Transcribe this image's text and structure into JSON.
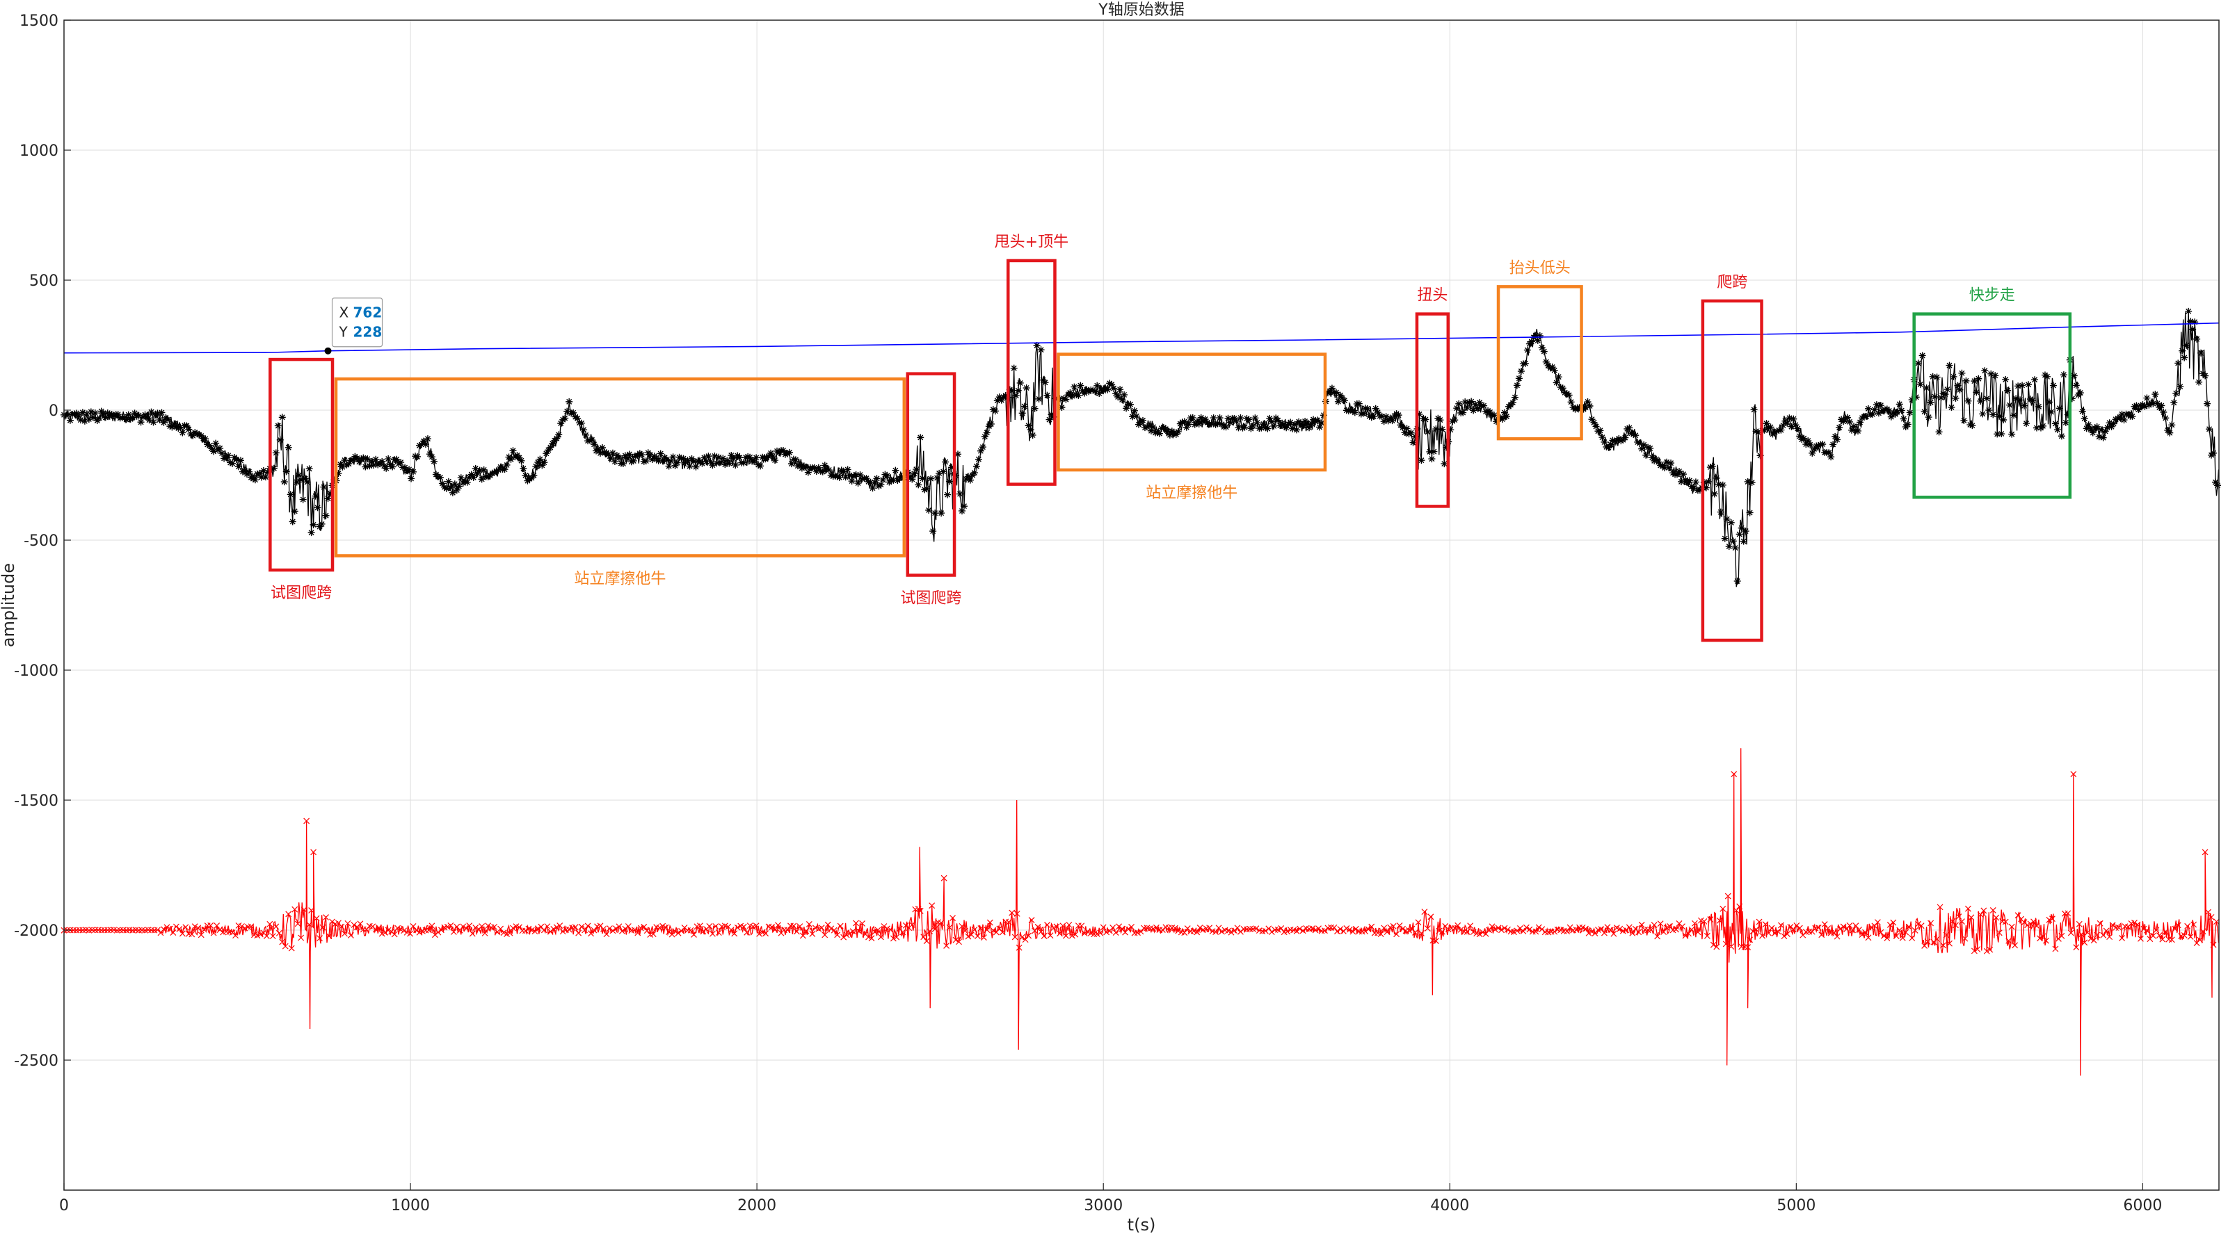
{
  "chart_data": {
    "type": "line",
    "title": "Y轴原始数据",
    "xlabel": "t(s)",
    "ylabel": "amplitude",
    "xlim": [
      0,
      6220
    ],
    "ylim": [
      -3000,
      1500
    ],
    "xticks": [
      0,
      1000,
      2000,
      3000,
      4000,
      5000,
      6000
    ],
    "yticks": [
      1500,
      1000,
      500,
      0,
      -500,
      -1000,
      -1500,
      -2000,
      -2500
    ],
    "grid": true,
    "series": [
      {
        "key": "raw",
        "color": "#000000",
        "marker": "*",
        "points": [
          [
            0,
            -25
          ],
          [
            100,
            -25
          ],
          [
            200,
            -25
          ],
          [
            270,
            -25
          ],
          [
            300,
            -40
          ],
          [
            350,
            -70
          ],
          [
            400,
            -110
          ],
          [
            450,
            -160
          ],
          [
            500,
            -200
          ],
          [
            550,
            -260
          ],
          [
            600,
            -230
          ],
          [
            630,
            -120
          ],
          [
            660,
            -350
          ],
          [
            700,
            -280
          ],
          [
            720,
            -390
          ],
          [
            760,
            -360
          ],
          [
            800,
            -200
          ],
          [
            850,
            -190
          ],
          [
            900,
            -210
          ],
          [
            950,
            -200
          ],
          [
            1000,
            -250
          ],
          [
            1030,
            -140
          ],
          [
            1050,
            -120
          ],
          [
            1080,
            -260
          ],
          [
            1120,
            -300
          ],
          [
            1180,
            -240
          ],
          [
            1220,
            -250
          ],
          [
            1260,
            -230
          ],
          [
            1300,
            -170
          ],
          [
            1340,
            -260
          ],
          [
            1380,
            -200
          ],
          [
            1420,
            -120
          ],
          [
            1460,
            20
          ],
          [
            1500,
            -80
          ],
          [
            1550,
            -160
          ],
          [
            1600,
            -190
          ],
          [
            1700,
            -180
          ],
          [
            1800,
            -210
          ],
          [
            1900,
            -190
          ],
          [
            2000,
            -200
          ],
          [
            2080,
            -170
          ],
          [
            2150,
            -220
          ],
          [
            2250,
            -240
          ],
          [
            2330,
            -280
          ],
          [
            2400,
            -250
          ],
          [
            2440,
            -260
          ],
          [
            2480,
            -210
          ],
          [
            2510,
            -400
          ],
          [
            2550,
            -260
          ],
          [
            2600,
            -280
          ],
          [
            2640,
            -200
          ],
          [
            2660,
            -80
          ],
          [
            2680,
            -20
          ],
          [
            2700,
            30
          ],
          [
            2740,
            60
          ],
          [
            2760,
            10
          ],
          [
            2790,
            -50
          ],
          [
            2810,
            160
          ],
          [
            2840,
            60
          ],
          [
            2880,
            30
          ],
          [
            2920,
            80
          ],
          [
            2960,
            70
          ],
          [
            3000,
            80
          ],
          [
            3020,
            90
          ],
          [
            3050,
            60
          ],
          [
            3070,
            20
          ],
          [
            3100,
            -40
          ],
          [
            3160,
            -70
          ],
          [
            3200,
            -90
          ],
          [
            3260,
            -40
          ],
          [
            3300,
            -50
          ],
          [
            3400,
            -50
          ],
          [
            3500,
            -50
          ],
          [
            3580,
            -60
          ],
          [
            3630,
            -50
          ],
          [
            3650,
            80
          ],
          [
            3700,
            20
          ],
          [
            3760,
            0
          ],
          [
            3800,
            -20
          ],
          [
            3850,
            -30
          ],
          [
            3880,
            -90
          ],
          [
            3900,
            -120
          ],
          [
            3930,
            -150
          ],
          [
            3960,
            -60
          ],
          [
            3990,
            -120
          ],
          [
            4020,
            0
          ],
          [
            4060,
            20
          ],
          [
            4100,
            0
          ],
          [
            4140,
            -50
          ],
          [
            4180,
            20
          ],
          [
            4220,
            200
          ],
          [
            4250,
            300
          ],
          [
            4280,
            200
          ],
          [
            4320,
            90
          ],
          [
            4360,
            0
          ],
          [
            4400,
            20
          ],
          [
            4430,
            -80
          ],
          [
            4460,
            -150
          ],
          [
            4500,
            -100
          ],
          [
            4530,
            -80
          ],
          [
            4560,
            -150
          ],
          [
            4600,
            -190
          ],
          [
            4650,
            -230
          ],
          [
            4700,
            -300
          ],
          [
            4750,
            -280
          ],
          [
            4780,
            -330
          ],
          [
            4800,
            -450
          ],
          [
            4830,
            -600
          ],
          [
            4860,
            -380
          ],
          [
            4880,
            -80
          ],
          [
            4910,
            -60
          ],
          [
            4940,
            -100
          ],
          [
            4970,
            -30
          ],
          [
            5000,
            -60
          ],
          [
            5030,
            -120
          ],
          [
            5050,
            -160
          ],
          [
            5080,
            -150
          ],
          [
            5100,
            -170
          ],
          [
            5120,
            -90
          ],
          [
            5140,
            -20
          ],
          [
            5170,
            -80
          ],
          [
            5200,
            -20
          ],
          [
            5240,
            10
          ],
          [
            5280,
            -10
          ],
          [
            5300,
            10
          ],
          [
            5320,
            -60
          ],
          [
            5350,
            200
          ],
          [
            5380,
            0
          ],
          [
            5420,
            40
          ],
          [
            5460,
            100
          ],
          [
            5500,
            20
          ],
          [
            5550,
            60
          ],
          [
            5600,
            0
          ],
          [
            5650,
            50
          ],
          [
            5700,
            30
          ],
          [
            5760,
            -10
          ],
          [
            5800,
            150
          ],
          [
            5840,
            -60
          ],
          [
            5880,
            -90
          ],
          [
            5920,
            -50
          ],
          [
            5960,
            -10
          ],
          [
            6000,
            20
          ],
          [
            6040,
            50
          ],
          [
            6080,
            -90
          ],
          [
            6120,
            300
          ],
          [
            6160,
            200
          ],
          [
            6180,
            100
          ],
          [
            6200,
            -100
          ],
          [
            6220,
            -300
          ]
        ]
      },
      {
        "key": "trend",
        "color": "#0000ff",
        "marker": "none",
        "points": [
          [
            0,
            220
          ],
          [
            600,
            222
          ],
          [
            762,
            228
          ],
          [
            1200,
            236
          ],
          [
            2000,
            245
          ],
          [
            2600,
            255
          ],
          [
            3000,
            262
          ],
          [
            3600,
            270
          ],
          [
            4200,
            280
          ],
          [
            4800,
            290
          ],
          [
            5300,
            300
          ],
          [
            5800,
            320
          ],
          [
            6220,
            335
          ]
        ]
      },
      {
        "key": "diff",
        "color": "#ff0000",
        "marker": "x",
        "baseline": -2000,
        "noise": [
          [
            0,
            1
          ],
          [
            270,
            1
          ],
          [
            280,
            15
          ],
          [
            600,
            25
          ],
          [
            680,
            120
          ],
          [
            780,
            30
          ],
          [
            1000,
            18
          ],
          [
            2000,
            18
          ],
          [
            2420,
            35
          ],
          [
            2480,
            110
          ],
          [
            2600,
            40
          ],
          [
            2700,
            30
          ],
          [
            2740,
            80
          ],
          [
            2820,
            30
          ],
          [
            3000,
            15
          ],
          [
            3300,
            10
          ],
          [
            3600,
            8
          ],
          [
            3700,
            12
          ],
          [
            3880,
            20
          ],
          [
            3940,
            90
          ],
          [
            4000,
            20
          ],
          [
            4200,
            10
          ],
          [
            4500,
            15
          ],
          [
            4740,
            40
          ],
          [
            4800,
            150
          ],
          [
            4880,
            40
          ],
          [
            5000,
            20
          ],
          [
            5330,
            40
          ],
          [
            5400,
            90
          ],
          [
            5600,
            80
          ],
          [
            5800,
            70
          ],
          [
            5900,
            30
          ],
          [
            6100,
            40
          ],
          [
            6220,
            80
          ]
        ],
        "spikes": [
          [
            700,
            420
          ],
          [
            710,
            -380
          ],
          [
            720,
            300
          ],
          [
            2470,
            320
          ],
          [
            2500,
            -300
          ],
          [
            2540,
            200
          ],
          [
            2750,
            500
          ],
          [
            2755,
            -460
          ],
          [
            3950,
            -250
          ],
          [
            4800,
            -520
          ],
          [
            4820,
            600
          ],
          [
            4840,
            700
          ],
          [
            4860,
            -300
          ],
          [
            5800,
            600
          ],
          [
            5820,
            -560
          ],
          [
            6180,
            300
          ],
          [
            6200,
            -260
          ]
        ]
      }
    ],
    "datatip": {
      "x_label": "X",
      "x": "762",
      "y_label": "Y",
      "y": "228",
      "point": [
        762,
        228
      ]
    },
    "annotations": [
      {
        "label": "试图爬跨",
        "color": "#e3171c",
        "box": {
          "x0": 595,
          "x1": 775,
          "y0": -615,
          "y1": 195
        },
        "label_pos": "below"
      },
      {
        "label": "站立摩擦他牛",
        "color": "#f58220",
        "box": {
          "x0": 785,
          "x1": 2425,
          "y0": -560,
          "y1": 120
        },
        "label_pos": "below"
      },
      {
        "label": "试图爬跨",
        "color": "#e3171c",
        "box": {
          "x0": 2435,
          "x1": 2570,
          "y0": -635,
          "y1": 140
        },
        "label_pos": "below"
      },
      {
        "label": "甩头+顶牛",
        "color": "#e3171c",
        "box": {
          "x0": 2725,
          "x1": 2860,
          "y0": -285,
          "y1": 575
        },
        "label_pos": "above"
      },
      {
        "label": "站立摩擦他牛",
        "color": "#f58220",
        "box": {
          "x0": 2870,
          "x1": 3640,
          "y0": -230,
          "y1": 215
        },
        "label_pos": "below"
      },
      {
        "label": "扭头",
        "color": "#e3171c",
        "box": {
          "x0": 3905,
          "x1": 3995,
          "y0": -370,
          "y1": 370
        },
        "label_pos": "above"
      },
      {
        "label": "抬头低头",
        "color": "#f58220",
        "box": {
          "x0": 4140,
          "x1": 4380,
          "y0": -110,
          "y1": 475
        },
        "label_pos": "above"
      },
      {
        "label": "爬跨",
        "color": "#e3171c",
        "box": {
          "x0": 4730,
          "x1": 4900,
          "y0": -885,
          "y1": 420
        },
        "label_pos": "above"
      },
      {
        "label": "快步走",
        "color": "#21a246",
        "box": {
          "x0": 5340,
          "x1": 5790,
          "y0": -335,
          "y1": 370
        },
        "label_pos": "above"
      }
    ]
  }
}
